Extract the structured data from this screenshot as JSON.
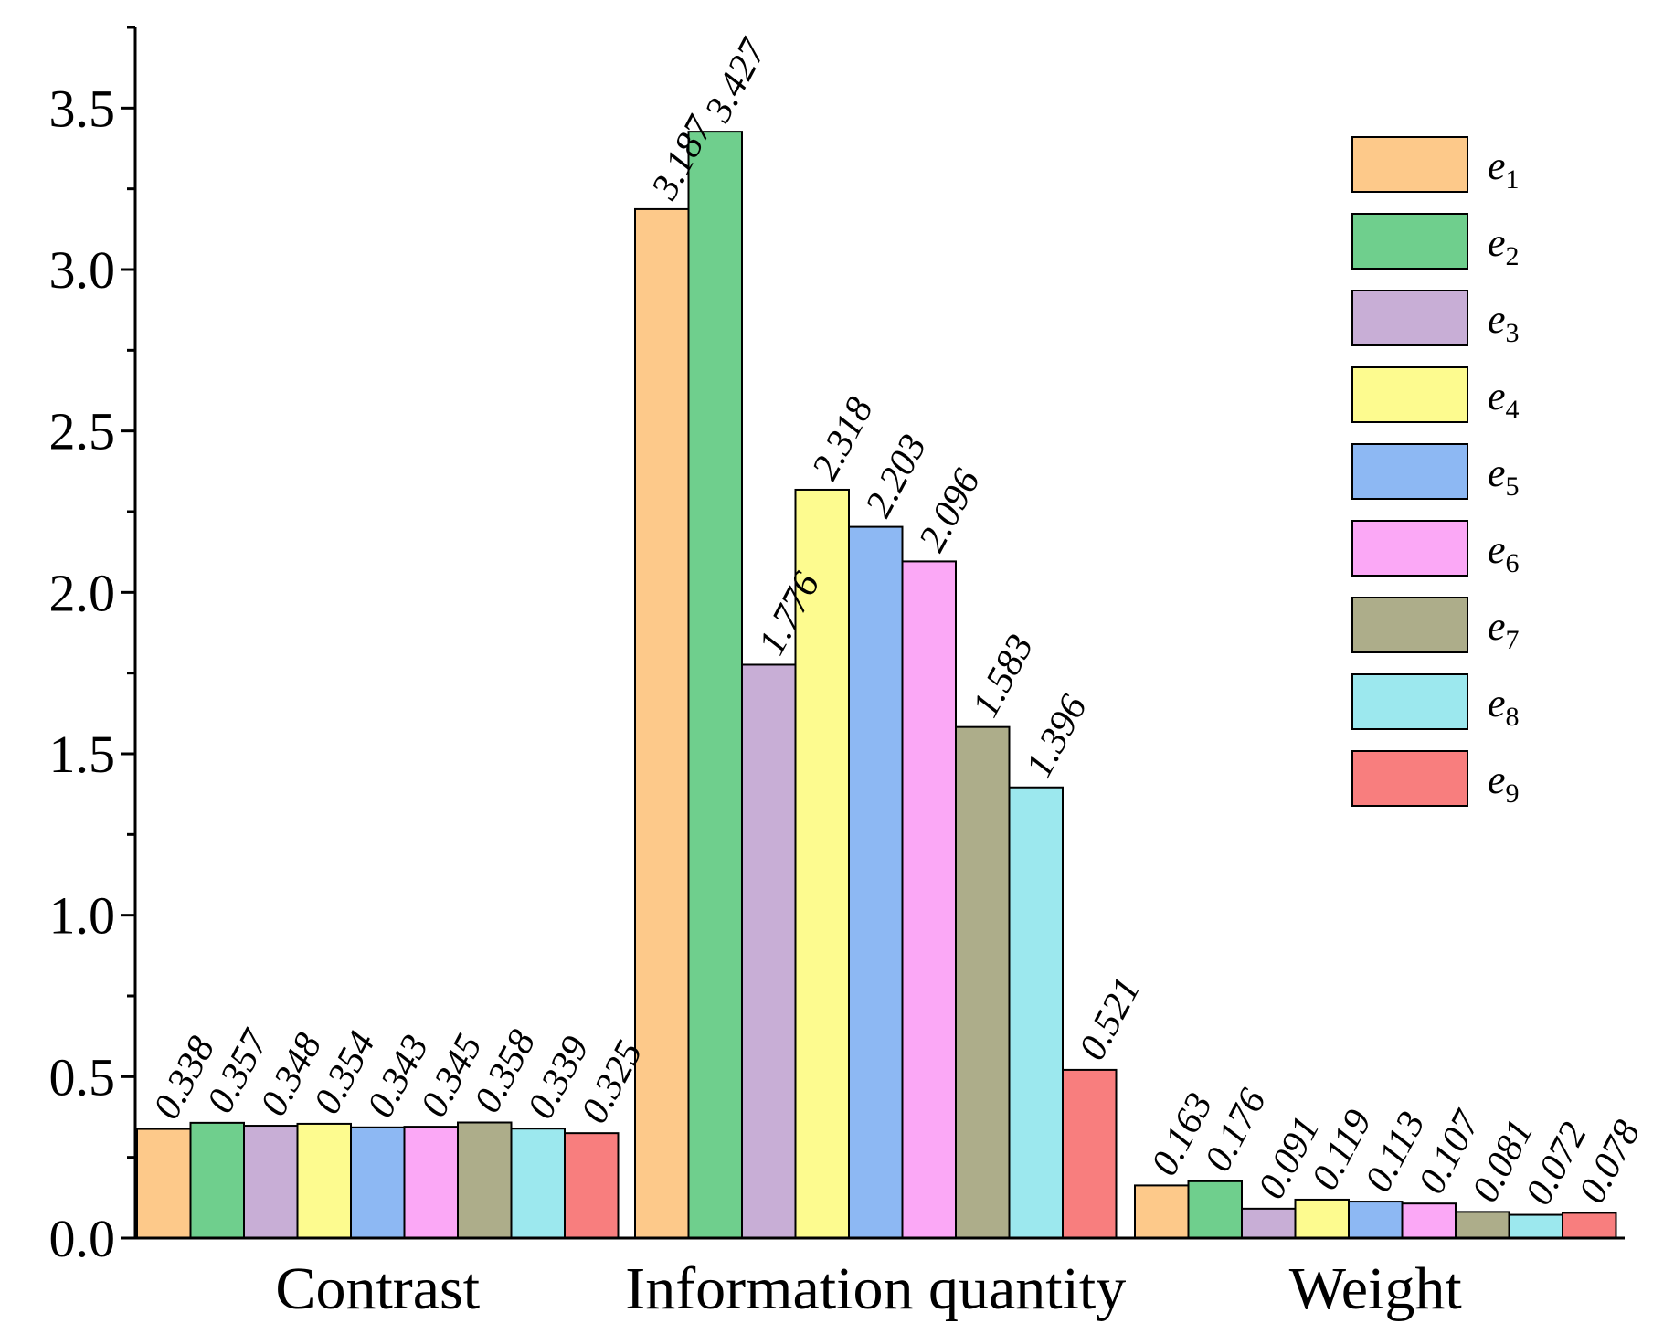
{
  "chart_data": {
    "type": "bar",
    "title": "",
    "xlabel": "",
    "ylabel": "",
    "ylim": [
      0,
      3.75
    ],
    "yticks": [
      "0.0",
      "0.5",
      "1.0",
      "1.5",
      "2.0",
      "2.5",
      "3.0",
      "3.5"
    ],
    "categories": [
      "Contrast",
      "Information quantity",
      "Weight"
    ],
    "series": [
      {
        "name": "e",
        "sub": "1",
        "color": "#FDC98A",
        "values": [
          0.338,
          3.187,
          0.163
        ],
        "labels": [
          "0.338",
          "3.187",
          "0.163"
        ]
      },
      {
        "name": "e",
        "sub": "2",
        "color": "#6FCF8D",
        "values": [
          0.357,
          3.427,
          0.176
        ],
        "labels": [
          "0.357",
          "3.427",
          "0.176"
        ]
      },
      {
        "name": "e",
        "sub": "3",
        "color": "#C8AED6",
        "values": [
          0.348,
          1.776,
          0.091
        ],
        "labels": [
          "0.348",
          "1.776",
          "0.091"
        ]
      },
      {
        "name": "e",
        "sub": "4",
        "color": "#FDFB8F",
        "values": [
          0.354,
          2.318,
          0.119
        ],
        "labels": [
          "0.354",
          "2.318",
          "0.119"
        ]
      },
      {
        "name": "e",
        "sub": "5",
        "color": "#8DB8F3",
        "values": [
          0.343,
          2.203,
          0.113
        ],
        "labels": [
          "0.343",
          "2.203",
          "0.113"
        ]
      },
      {
        "name": "e",
        "sub": "6",
        "color": "#FBA8F6",
        "values": [
          0.345,
          2.096,
          0.107
        ],
        "labels": [
          "0.345",
          "2.096",
          "0.107"
        ]
      },
      {
        "name": "e",
        "sub": "7",
        "color": "#ADAD8A",
        "values": [
          0.358,
          1.583,
          0.081
        ],
        "labels": [
          "0.358",
          "1.583",
          "0.081"
        ]
      },
      {
        "name": "e",
        "sub": "8",
        "color": "#9CE8EE",
        "values": [
          0.339,
          1.396,
          0.072
        ],
        "labels": [
          "0.339",
          "1.396",
          "0.072"
        ]
      },
      {
        "name": "e",
        "sub": "9",
        "color": "#F87E7E",
        "values": [
          0.325,
          0.521,
          0.078
        ],
        "labels": [
          "0.325",
          "0.521",
          "0.078"
        ]
      }
    ],
    "legend_position": "top-right",
    "grid": false
  }
}
